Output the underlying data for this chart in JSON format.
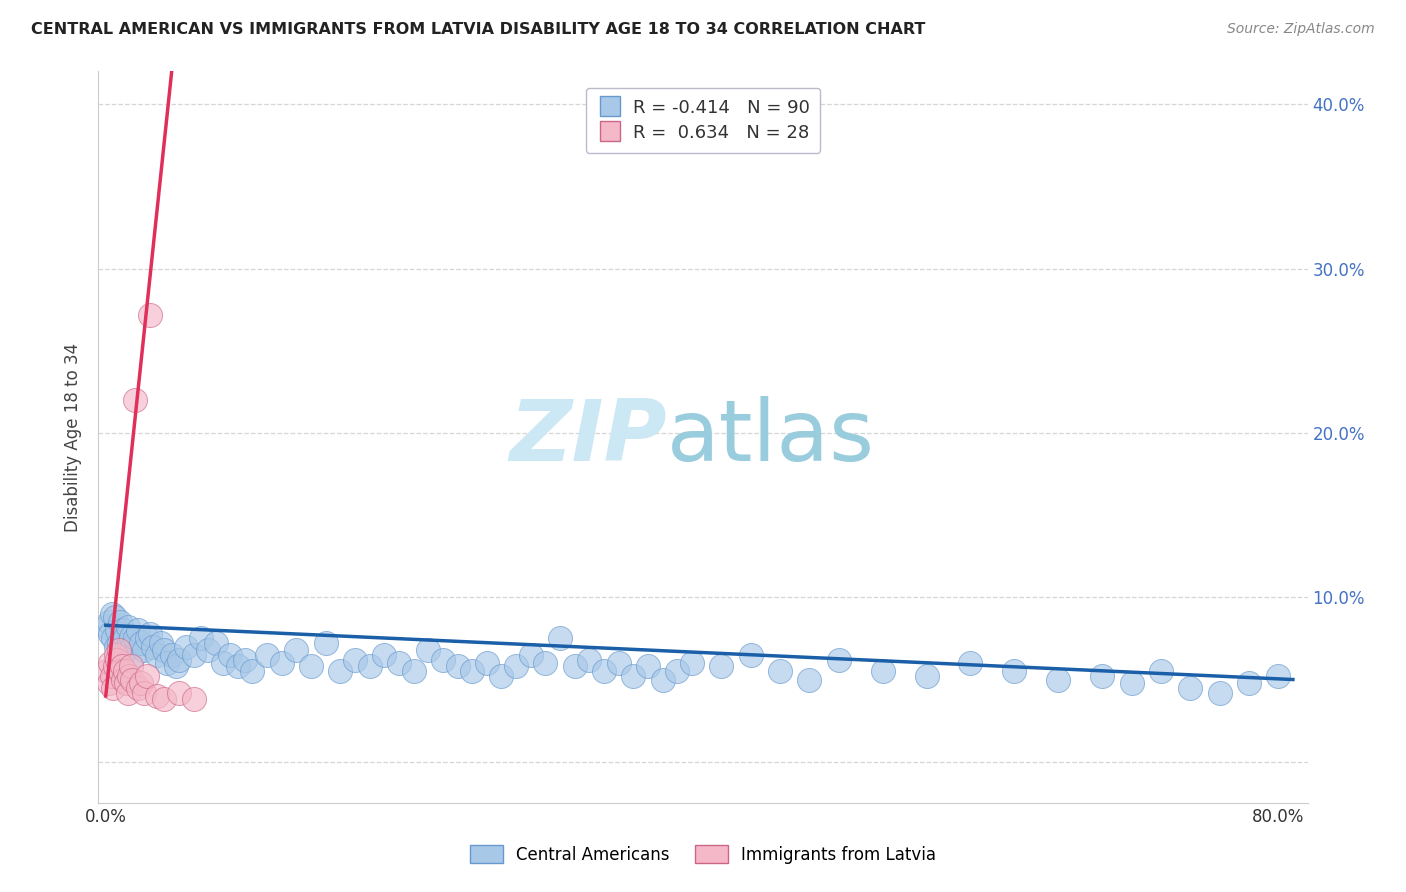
{
  "title": "CENTRAL AMERICAN VS IMMIGRANTS FROM LATVIA DISABILITY AGE 18 TO 34 CORRELATION CHART",
  "source": "Source: ZipAtlas.com",
  "ylabel": "Disability Age 18 to 34",
  "watermark_zip": "ZIP",
  "watermark_atlas": "atlas",
  "blue_R": -0.414,
  "blue_N": 90,
  "pink_R": 0.634,
  "pink_N": 28,
  "xlim": [
    -0.005,
    0.82
  ],
  "ylim": [
    -0.025,
    0.42
  ],
  "yticks": [
    0.0,
    0.1,
    0.2,
    0.3,
    0.4
  ],
  "blue_scatter_x": [
    0.001,
    0.002,
    0.003,
    0.004,
    0.005,
    0.006,
    0.007,
    0.008,
    0.009,
    0.01,
    0.011,
    0.012,
    0.013,
    0.014,
    0.015,
    0.016,
    0.017,
    0.018,
    0.019,
    0.02,
    0.022,
    0.024,
    0.026,
    0.028,
    0.03,
    0.032,
    0.035,
    0.038,
    0.04,
    0.042,
    0.045,
    0.048,
    0.05,
    0.055,
    0.06,
    0.065,
    0.07,
    0.075,
    0.08,
    0.085,
    0.09,
    0.095,
    0.1,
    0.11,
    0.12,
    0.13,
    0.14,
    0.15,
    0.16,
    0.17,
    0.18,
    0.19,
    0.2,
    0.21,
    0.22,
    0.23,
    0.24,
    0.25,
    0.26,
    0.27,
    0.28,
    0.29,
    0.3,
    0.31,
    0.32,
    0.33,
    0.34,
    0.35,
    0.36,
    0.37,
    0.38,
    0.39,
    0.4,
    0.42,
    0.44,
    0.46,
    0.48,
    0.5,
    0.53,
    0.56,
    0.59,
    0.62,
    0.65,
    0.68,
    0.7,
    0.72,
    0.74,
    0.76,
    0.78,
    0.8
  ],
  "blue_scatter_y": [
    0.082,
    0.085,
    0.078,
    0.09,
    0.075,
    0.088,
    0.07,
    0.08,
    0.072,
    0.085,
    0.078,
    0.08,
    0.075,
    0.068,
    0.082,
    0.072,
    0.076,
    0.07,
    0.065,
    0.075,
    0.08,
    0.072,
    0.068,
    0.075,
    0.078,
    0.07,
    0.065,
    0.072,
    0.068,
    0.06,
    0.065,
    0.058,
    0.062,
    0.07,
    0.065,
    0.075,
    0.068,
    0.072,
    0.06,
    0.065,
    0.058,
    0.062,
    0.055,
    0.065,
    0.06,
    0.068,
    0.058,
    0.072,
    0.055,
    0.062,
    0.058,
    0.065,
    0.06,
    0.055,
    0.068,
    0.062,
    0.058,
    0.055,
    0.06,
    0.052,
    0.058,
    0.065,
    0.06,
    0.075,
    0.058,
    0.062,
    0.055,
    0.06,
    0.052,
    0.058,
    0.05,
    0.055,
    0.06,
    0.058,
    0.065,
    0.055,
    0.05,
    0.062,
    0.055,
    0.052,
    0.06,
    0.055,
    0.05,
    0.052,
    0.048,
    0.055,
    0.045,
    0.042,
    0.048,
    0.052
  ],
  "pink_scatter_x": [
    0.001,
    0.002,
    0.003,
    0.004,
    0.005,
    0.006,
    0.007,
    0.008,
    0.009,
    0.01,
    0.011,
    0.012,
    0.013,
    0.014,
    0.015,
    0.016,
    0.017,
    0.018,
    0.02,
    0.022,
    0.024,
    0.026,
    0.028,
    0.03,
    0.035,
    0.04,
    0.05,
    0.06
  ],
  "pink_scatter_y": [
    0.055,
    0.048,
    0.06,
    0.052,
    0.045,
    0.058,
    0.065,
    0.062,
    0.068,
    0.055,
    0.058,
    0.05,
    0.055,
    0.048,
    0.042,
    0.052,
    0.058,
    0.05,
    0.22,
    0.045,
    0.048,
    0.042,
    0.052,
    0.272,
    0.04,
    0.038,
    0.042,
    0.038
  ],
  "blue_trend_x": [
    0.0,
    0.81
  ],
  "blue_trend_y": [
    0.083,
    0.05
  ],
  "pink_trend_x": [
    0.0,
    0.045
  ],
  "pink_trend_y": [
    0.04,
    0.42
  ],
  "blue_color": "#a8c8e8",
  "blue_edge_color": "#6699cc",
  "pink_color": "#f4b8c8",
  "pink_edge_color": "#cc6688",
  "trend_blue_color": "#1a5fa8",
  "trend_pink_color": "#e0305a",
  "bg_color": "#ffffff",
  "grid_color": "#cccccc",
  "title_color": "#222222",
  "axis_label_color": "#444444",
  "watermark_color": "#cce8f4",
  "watermark_atlas_color": "#99ccdd",
  "right_tick_color": "#4472c4",
  "legend_box_color": "#d0d8f0",
  "legend_pink_box": "#f4b8c8",
  "source_color": "#888888"
}
